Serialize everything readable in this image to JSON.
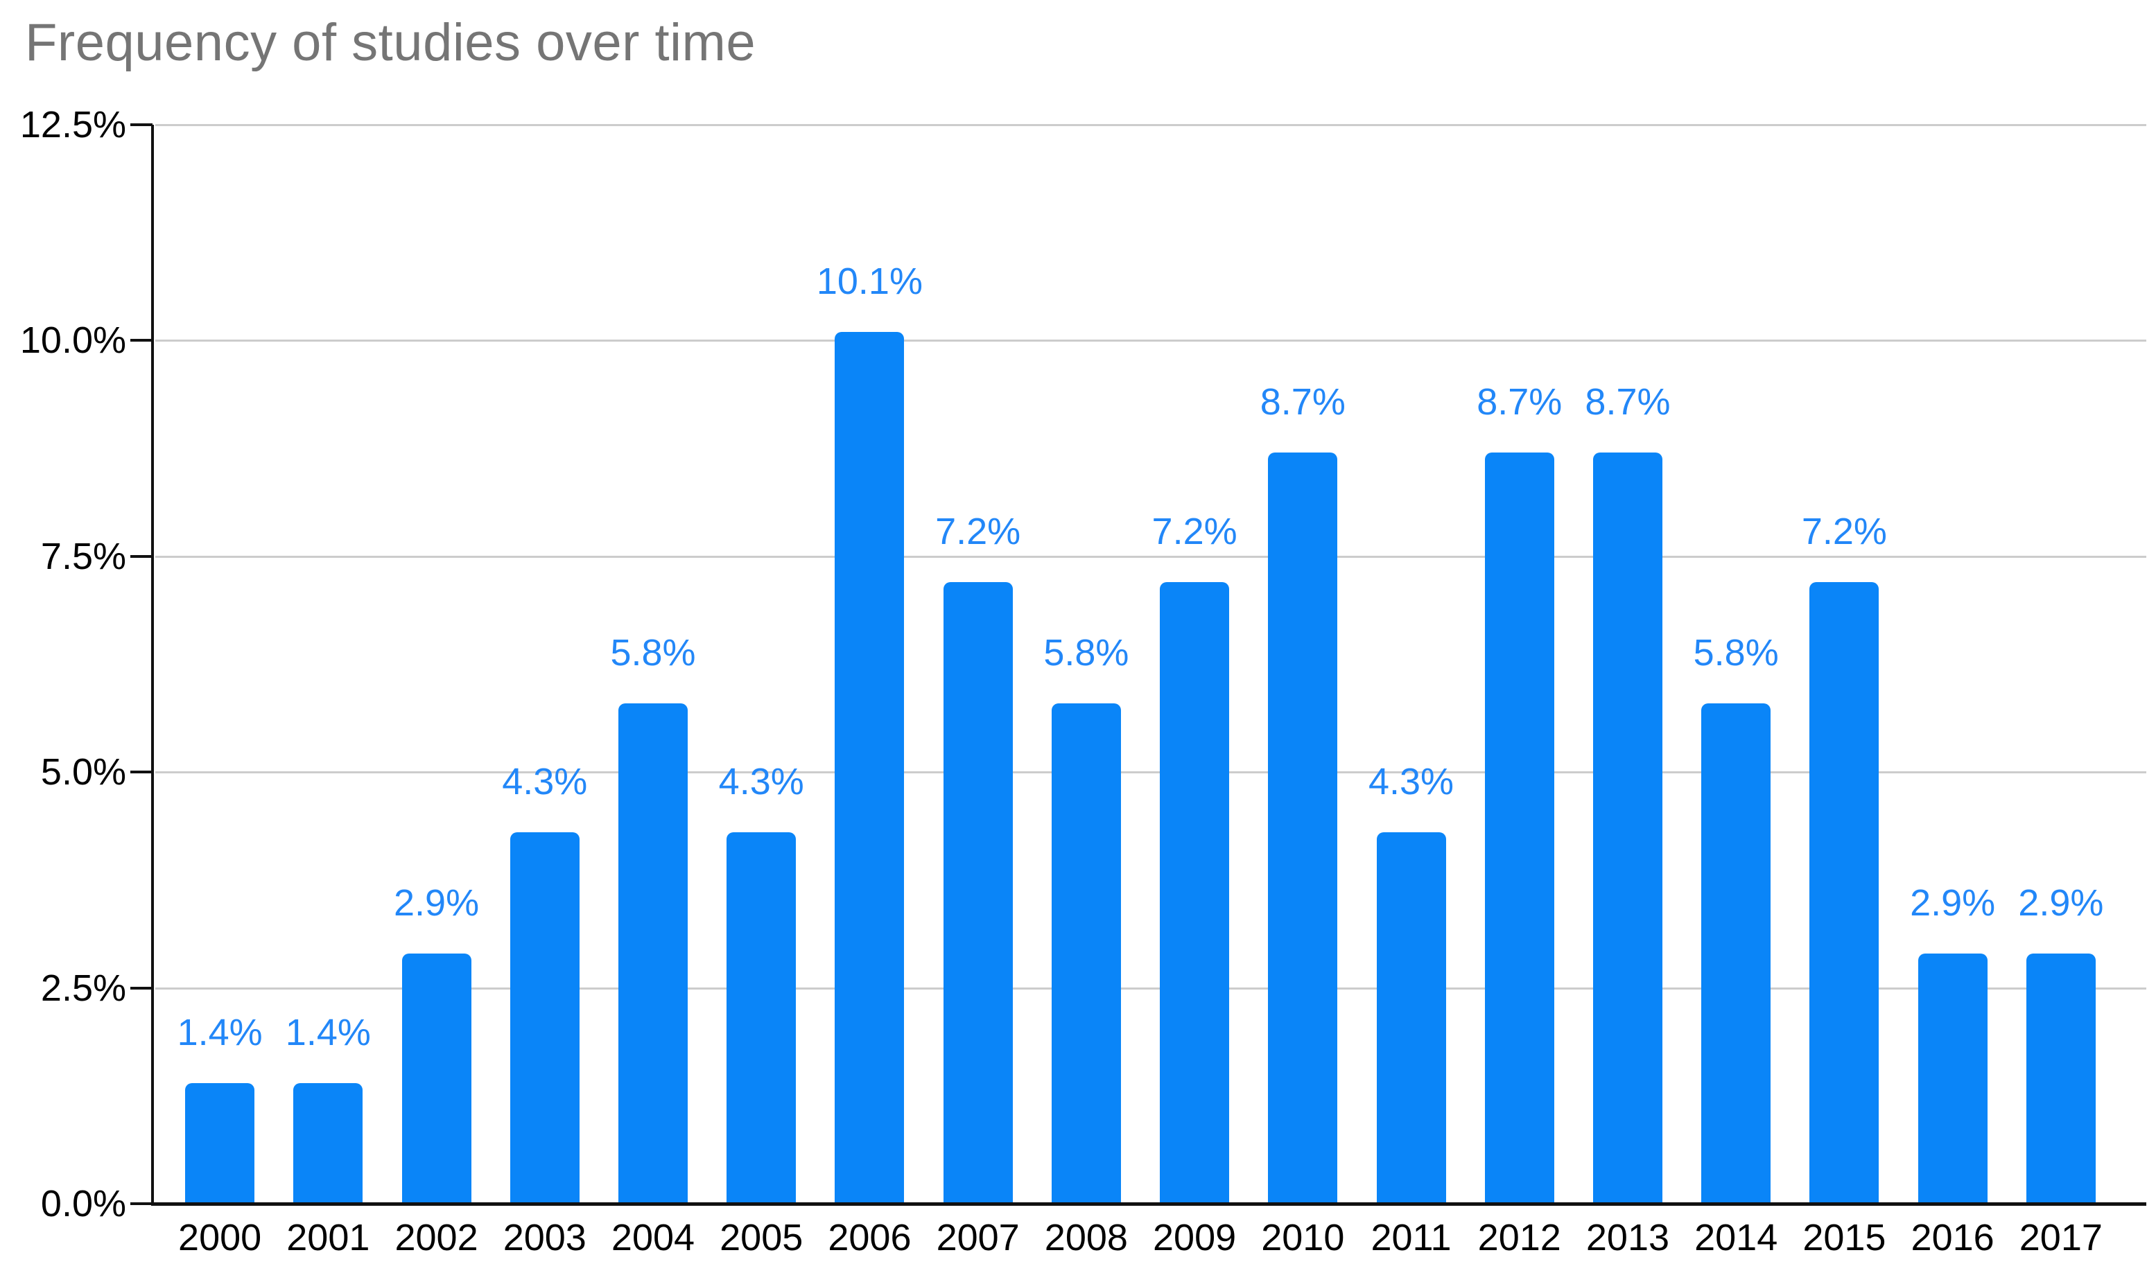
{
  "chart_data": {
    "type": "bar",
    "title": "Frequency of studies over time",
    "categories": [
      "2000",
      "2001",
      "2002",
      "2003",
      "2004",
      "2005",
      "2006",
      "2007",
      "2008",
      "2009",
      "2010",
      "2011",
      "2012",
      "2013",
      "2014",
      "2015",
      "2016",
      "2017"
    ],
    "values": [
      1.4,
      1.4,
      2.9,
      4.3,
      5.8,
      4.3,
      10.1,
      7.2,
      5.8,
      7.2,
      8.7,
      4.3,
      8.7,
      8.7,
      5.8,
      7.2,
      2.9,
      2.9
    ],
    "bar_labels": [
      "1.4%",
      "1.4%",
      "2.9%",
      "4.3%",
      "5.8%",
      "4.3%",
      "10.1%",
      "7.2%",
      "5.8%",
      "7.2%",
      "8.7%",
      "4.3%",
      "8.7%",
      "8.7%",
      "5.8%",
      "7.2%",
      "2.9%",
      "2.9%"
    ],
    "y_tick_labels": [
      "0.0%",
      "2.5%",
      "5.0%",
      "7.5%",
      "10.0%",
      "12.5%"
    ],
    "y_tick_values": [
      0,
      2.5,
      5,
      7.5,
      10,
      12.5
    ],
    "ylim": [
      0,
      12.5
    ],
    "xlabel": "",
    "ylabel": "",
    "grid": "horizontal gridlines on",
    "legend": "none",
    "colors": {
      "bar": "#0a85f8",
      "bar_label_text": "#2287f8",
      "title_text": "#757575",
      "axis_text": "#000000",
      "gridline": "#cccccc",
      "axis_line": "#111111"
    }
  }
}
